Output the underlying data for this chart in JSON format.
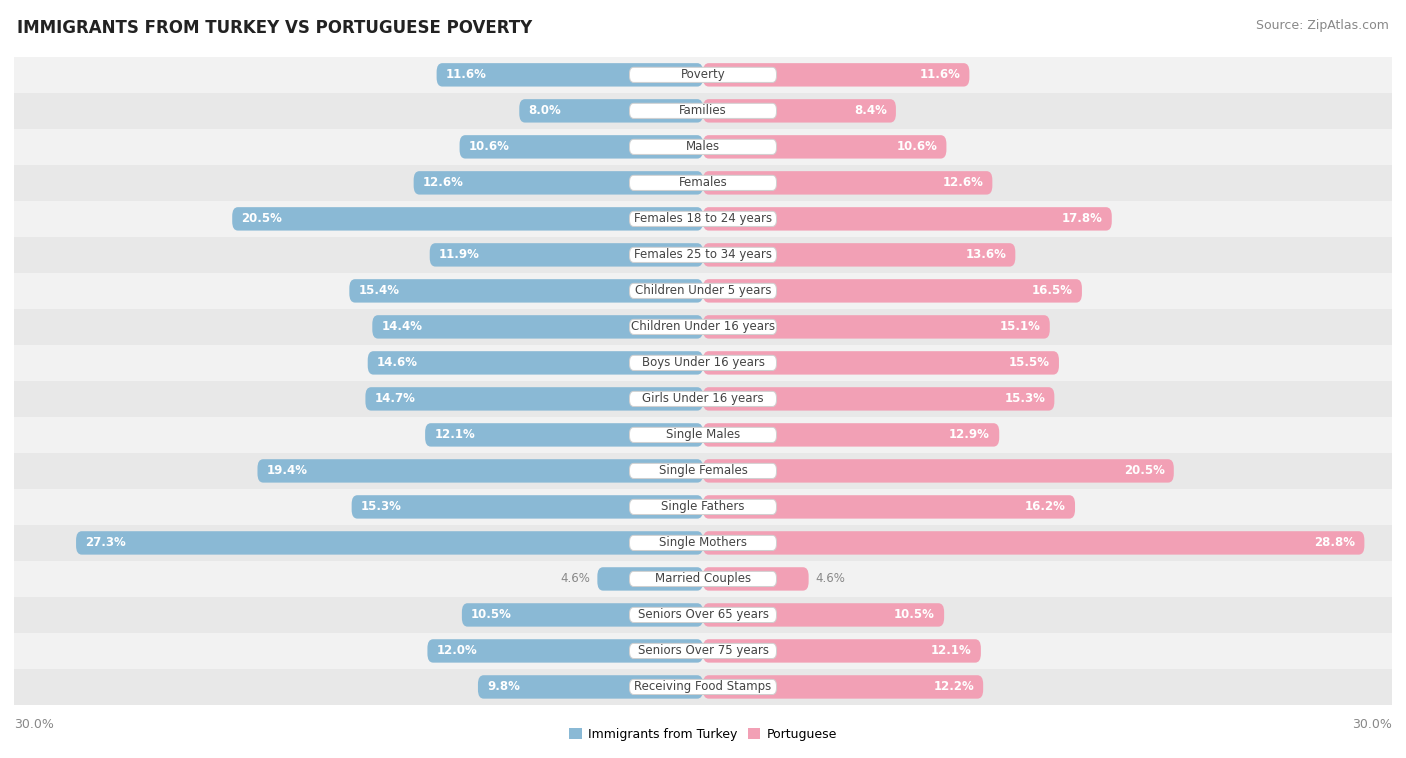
{
  "title": "IMMIGRANTS FROM TURKEY VS PORTUGUESE POVERTY",
  "source": "Source: ZipAtlas.com",
  "categories": [
    "Poverty",
    "Families",
    "Males",
    "Females",
    "Females 18 to 24 years",
    "Females 25 to 34 years",
    "Children Under 5 years",
    "Children Under 16 years",
    "Boys Under 16 years",
    "Girls Under 16 years",
    "Single Males",
    "Single Females",
    "Single Fathers",
    "Single Mothers",
    "Married Couples",
    "Seniors Over 65 years",
    "Seniors Over 75 years",
    "Receiving Food Stamps"
  ],
  "left_values": [
    11.6,
    8.0,
    10.6,
    12.6,
    20.5,
    11.9,
    15.4,
    14.4,
    14.6,
    14.7,
    12.1,
    19.4,
    15.3,
    27.3,
    4.6,
    10.5,
    12.0,
    9.8
  ],
  "right_values": [
    11.6,
    8.4,
    10.6,
    12.6,
    17.8,
    13.6,
    16.5,
    15.1,
    15.5,
    15.3,
    12.9,
    20.5,
    16.2,
    28.8,
    4.6,
    10.5,
    12.1,
    12.2
  ],
  "left_color": "#8ab9d5",
  "right_color": "#f2a0b5",
  "row_bg_color_even": "#f2f2f2",
  "row_bg_color_odd": "#e8e8e8",
  "value_color_outside": "#888888",
  "max_value": 30.0,
  "legend_left": "Immigrants from Turkey",
  "legend_right": "Portuguese",
  "background_color": "#ffffff",
  "inside_label_threshold": 7.0
}
